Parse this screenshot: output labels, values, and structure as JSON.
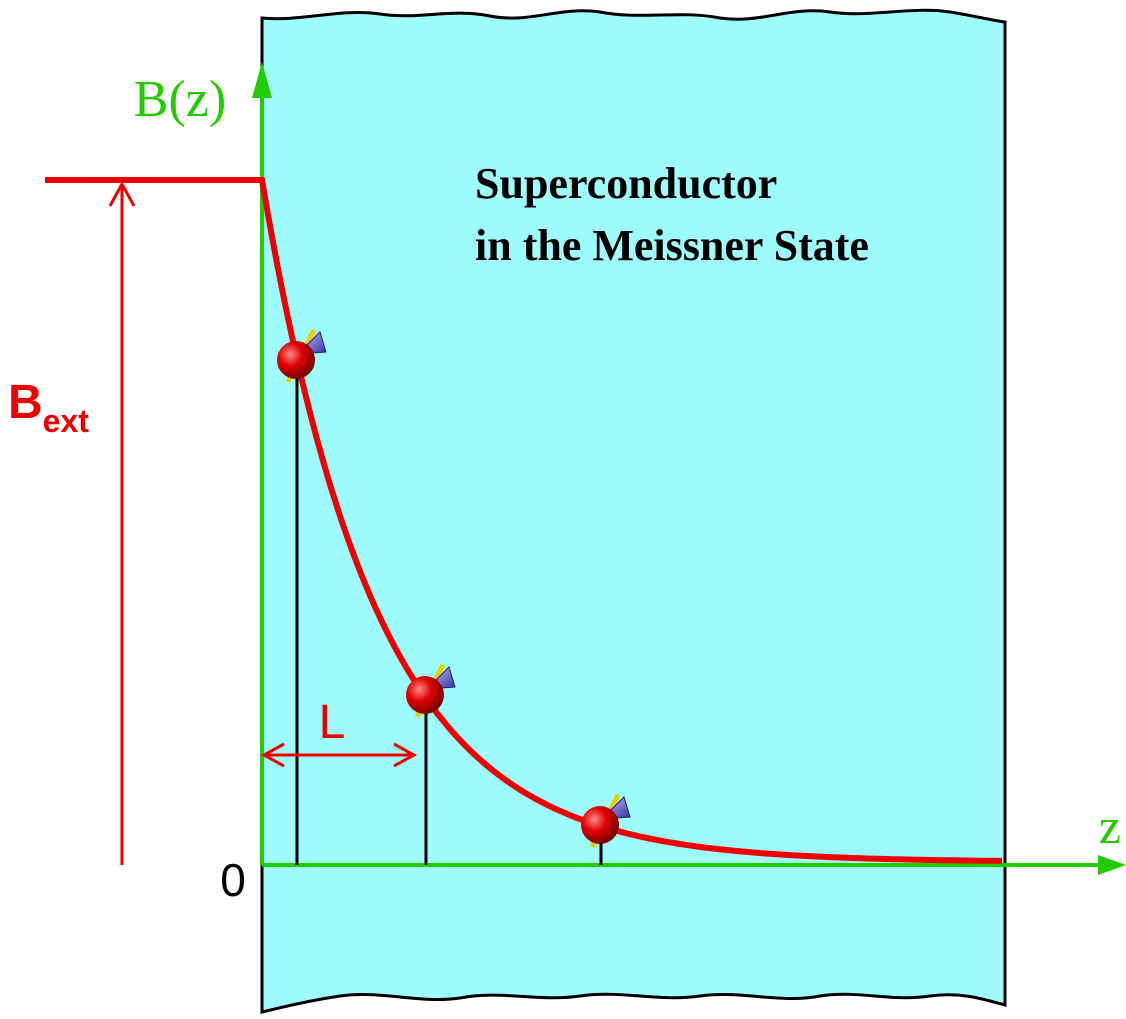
{
  "axis_labels": {
    "y": "B(z)",
    "x": "z",
    "origin": "0"
  },
  "region": {
    "line1": "Superconductor",
    "line2": "in the Meissner State"
  },
  "field": {
    "symbol": "B",
    "subscript": "ext"
  },
  "depth": {
    "label": "L"
  }
}
